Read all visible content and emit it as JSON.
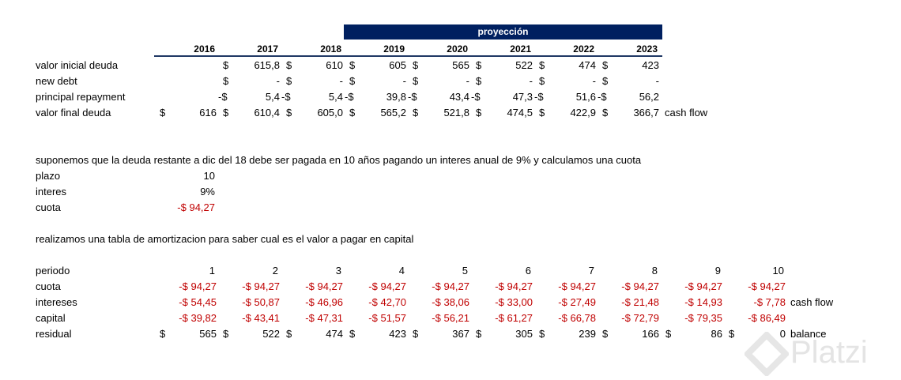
{
  "header": {
    "banner": "proyección",
    "years": [
      "2016",
      "2017",
      "2018",
      "2019",
      "2020",
      "2021",
      "2022",
      "2023"
    ]
  },
  "debt_table": {
    "rows": [
      {
        "label": "valor inicial deuda",
        "cells": [
          null,
          [
            "$",
            "615,8"
          ],
          [
            "$",
            "610"
          ],
          [
            "$",
            "605"
          ],
          [
            "$",
            "565"
          ],
          [
            "$",
            "522"
          ],
          [
            "$",
            "474"
          ],
          [
            "$",
            "423"
          ]
        ]
      },
      {
        "label": "new debt",
        "cells": [
          null,
          [
            "$",
            "-"
          ],
          [
            "$",
            "-"
          ],
          [
            "$",
            "-"
          ],
          [
            "$",
            "-"
          ],
          [
            "$",
            "-"
          ],
          [
            "$",
            "-"
          ],
          [
            "$",
            "-"
          ]
        ]
      },
      {
        "label": "principal repayment",
        "cells": [
          null,
          [
            "-$",
            "5,4"
          ],
          [
            "-$",
            "5,4"
          ],
          [
            "-$",
            "39,8"
          ],
          [
            "-$",
            "43,4"
          ],
          [
            "-$",
            "47,3"
          ],
          [
            "-$",
            "51,6"
          ],
          [
            "-$",
            "56,2"
          ]
        ]
      },
      {
        "label": "valor final deuda",
        "cells": [
          [
            "$",
            "616"
          ],
          [
            "$",
            "610,4"
          ],
          [
            "$",
            "605,0"
          ],
          [
            "$",
            "565,2"
          ],
          [
            "$",
            "521,8"
          ],
          [
            "$",
            "474,5"
          ],
          [
            "$",
            "422,9"
          ],
          [
            "$",
            "366,7"
          ]
        ],
        "note": "cash flow"
      }
    ]
  },
  "assumption": "suponemos que la deuda restante a dic del 18 debe ser pagada en 10 años pagando un interes anual de 9% y calculamos una cuota",
  "params": [
    {
      "label": "plazo",
      "value": "10"
    },
    {
      "label": "interes",
      "value": "9%"
    },
    {
      "label": "cuota",
      "value": "-$ 94,27"
    }
  ],
  "amortization_intro": "realizamos una tabla de amortizacion para saber cual es el valor a pagar en capital",
  "amortization": {
    "period_label": "periodo",
    "periods": [
      "1",
      "2",
      "3",
      "4",
      "5",
      "6",
      "7",
      "8",
      "9",
      "10"
    ],
    "rows": [
      {
        "label": "cuota",
        "cells": [
          "-$ 94,27",
          "-$ 94,27",
          "-$ 94,27",
          "-$ 94,27",
          "-$ 94,27",
          "-$ 94,27",
          "-$ 94,27",
          "-$ 94,27",
          "-$ 94,27",
          "-$ 94,27"
        ]
      },
      {
        "label": "intereses",
        "cells": [
          "-$ 54,45",
          "-$ 50,87",
          "-$ 46,96",
          "-$ 42,70",
          "-$ 38,06",
          "-$ 33,00",
          "-$ 27,49",
          "-$ 21,48",
          "-$ 14,93",
          "-$ 7,78"
        ],
        "note": "cash flow"
      },
      {
        "label": "capital",
        "cells": [
          "-$ 39,82",
          "-$ 43,41",
          "-$ 47,31",
          "-$ 51,57",
          "-$ 56,21",
          "-$ 61,27",
          "-$ 66,78",
          "-$ 72,79",
          "-$ 79,35",
          "-$ 86,49"
        ]
      },
      {
        "label": "residual",
        "cells": [
          [
            "$",
            "565"
          ],
          [
            "$",
            "522"
          ],
          [
            "$",
            "474"
          ],
          [
            "$",
            "423"
          ],
          [
            "$",
            "367"
          ],
          [
            "$",
            "305"
          ],
          [
            "$",
            "239"
          ],
          [
            "$",
            "166"
          ],
          [
            "$",
            "86"
          ],
          [
            "$",
            "0"
          ]
        ],
        "note": "balance"
      }
    ]
  },
  "watermark": "Platzi"
}
